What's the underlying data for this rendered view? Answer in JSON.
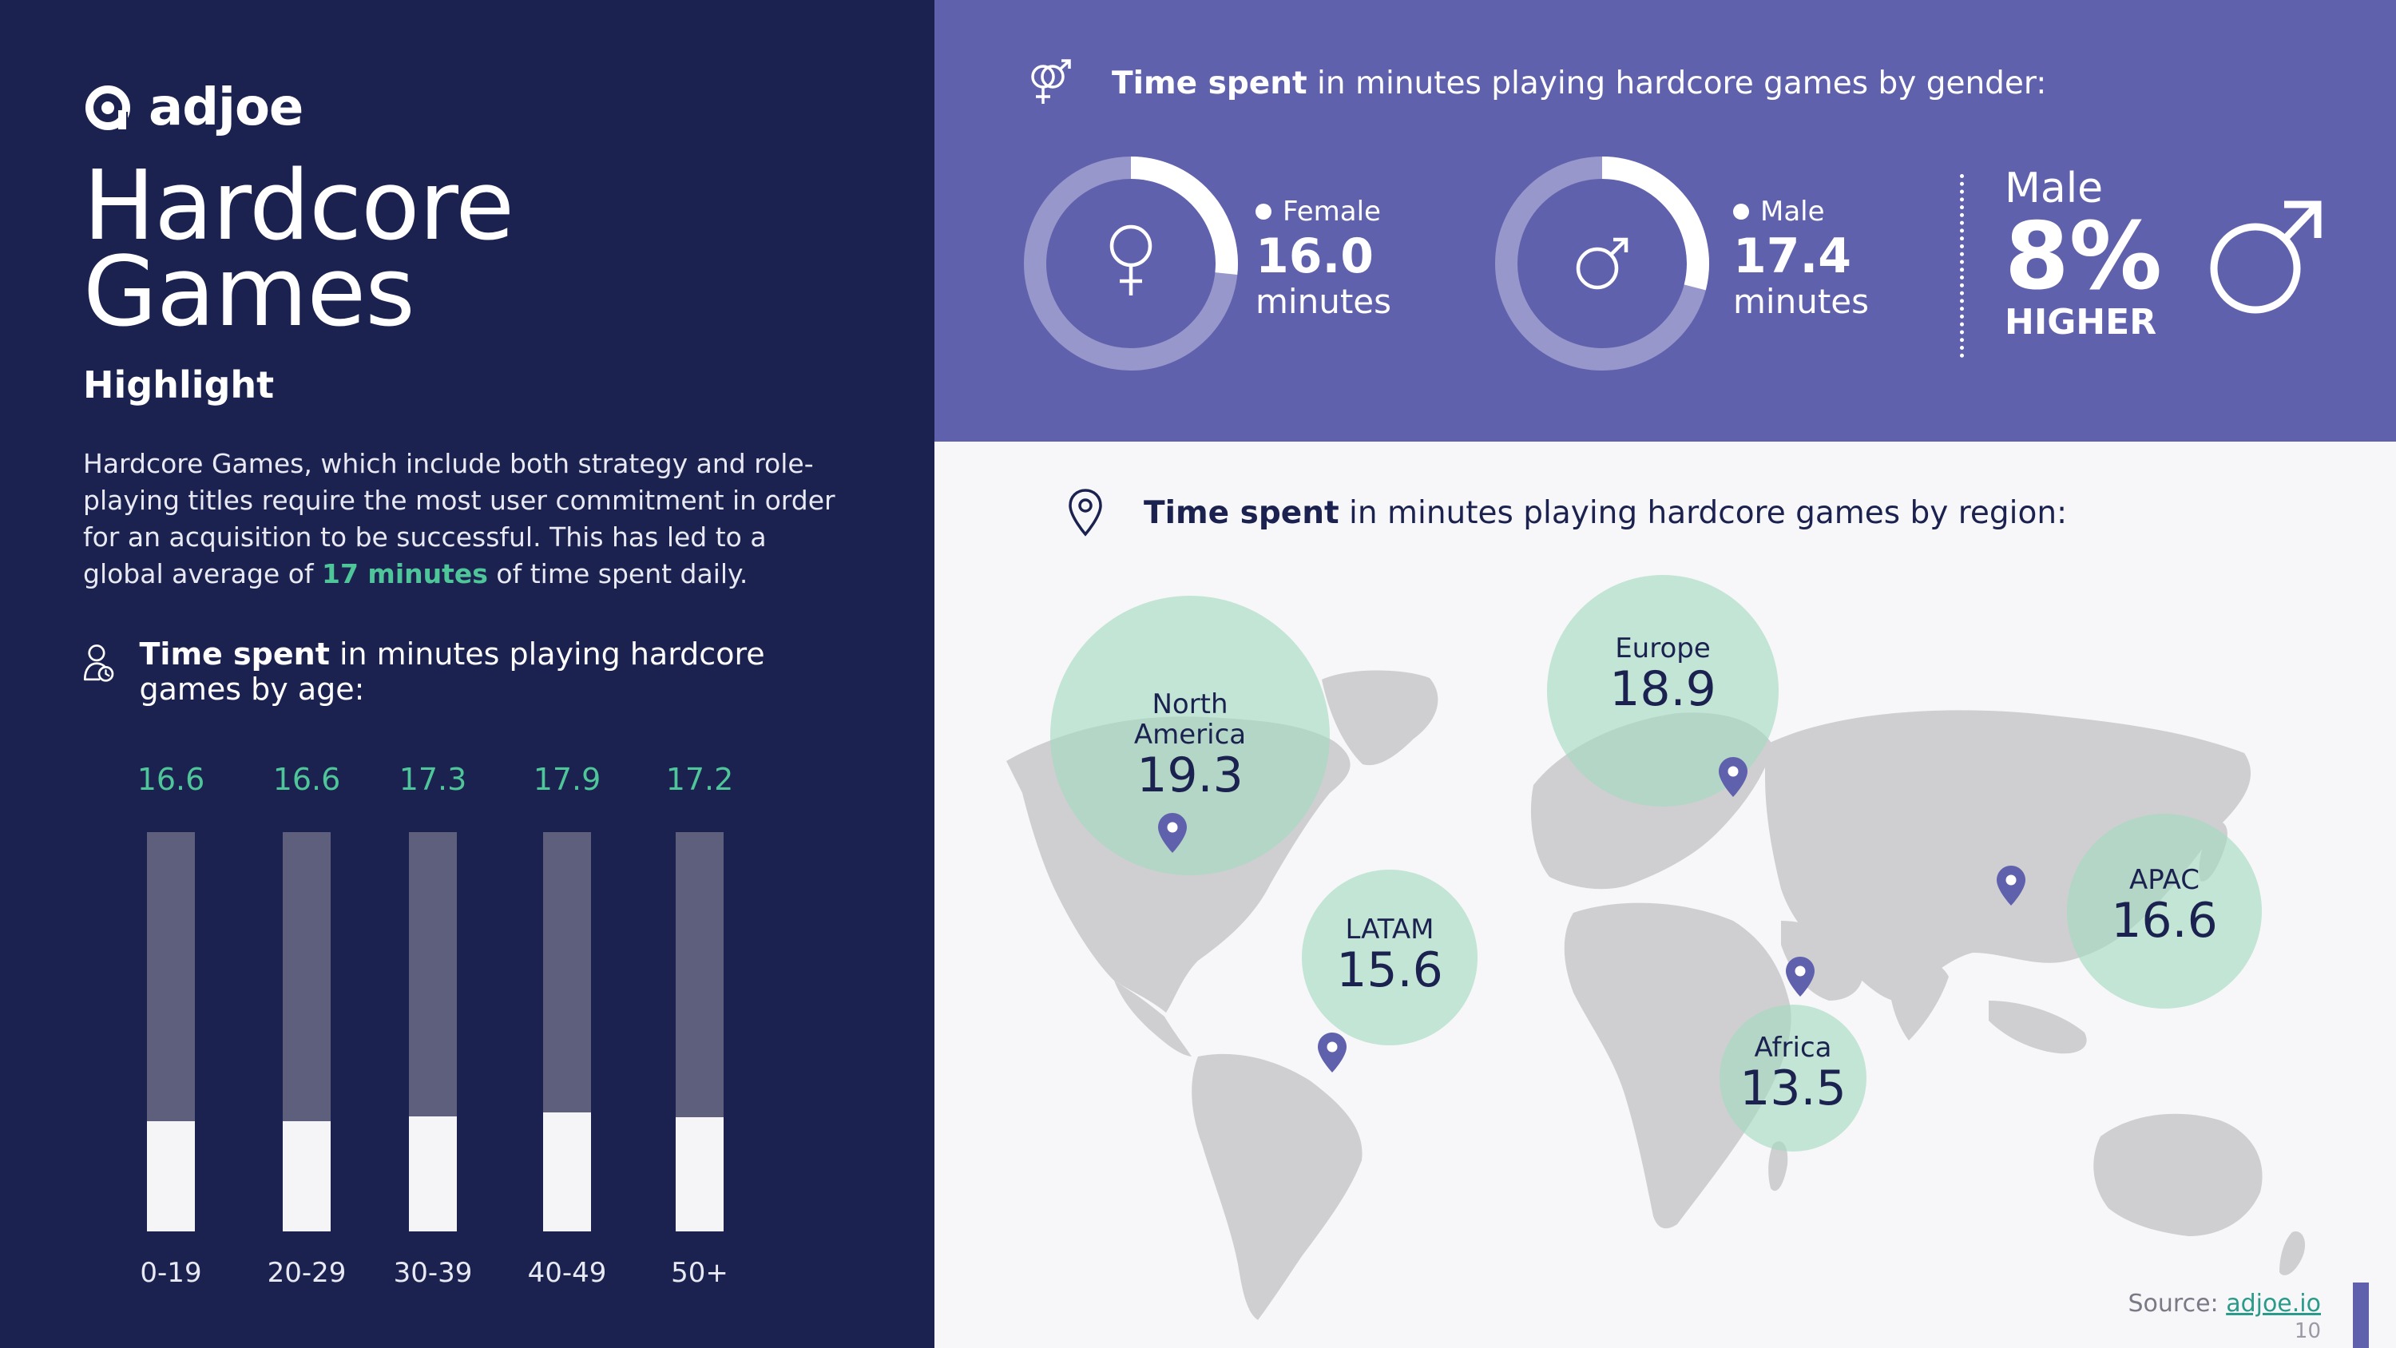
{
  "brand": {
    "name": "adjoe"
  },
  "title": {
    "line1": "Hardcore",
    "line2": "Games"
  },
  "subtitle": "Highlight",
  "description": {
    "before": "Hardcore Games, which include both strategy and role-playing titles require the most user commitment in order for an acquisition to be successful. This has led to a global average of ",
    "highlight": "17 minutes",
    "after": " of time spent daily."
  },
  "age_section": {
    "bold": "Time spent",
    "rest": " in minutes playing hardcore games by age:"
  },
  "gender_section": {
    "bold": "Time spent",
    "rest": " in minutes playing hardcore games by gender:",
    "female": {
      "label": "Female",
      "value": "16.0",
      "unit": "minutes"
    },
    "male": {
      "label": "Male",
      "value": "17.4",
      "unit": "minutes"
    },
    "difference": {
      "top": "Male",
      "pct": "8%",
      "bottom": "HIGHER"
    }
  },
  "region_section": {
    "bold": "Time spent",
    "rest": " in minutes playing hardcore games by region:",
    "regions": [
      {
        "name": "North America",
        "value": "19.3"
      },
      {
        "name": "Europe",
        "value": "18.9"
      },
      {
        "name": "LATAM",
        "value": "15.6"
      },
      {
        "name": "APAC",
        "value": "16.6"
      },
      {
        "name": "Africa",
        "value": "13.5"
      }
    ]
  },
  "footer": {
    "source_label": "Source: ",
    "source_link": "adjoe.io",
    "page_number": "10"
  },
  "colors": {
    "navy": "#1b2250",
    "purple": "#6061ad",
    "green": "#4fc59a",
    "bubble": "#a2dabf",
    "pin": "#6061ad"
  },
  "chart_data": [
    {
      "type": "bar",
      "categories": [
        "0-19",
        "20-29",
        "30-39",
        "40-49",
        "50+"
      ],
      "values": [
        16.6,
        16.6,
        17.3,
        17.9,
        17.2
      ],
      "value_labels": [
        "16.6",
        "16.6",
        "17.3",
        "17.9",
        "17.2"
      ],
      "title": "",
      "xlabel": "",
      "ylabel": "",
      "ylim": [
        0,
        60
      ]
    },
    {
      "type": "pie",
      "style": "donut",
      "series": [
        {
          "name": "Female",
          "value": 16.0,
          "max": 60
        },
        {
          "name": "Male",
          "value": 17.4,
          "max": 60
        }
      ]
    },
    {
      "type": "scatter",
      "style": "bubble-map",
      "categories": [
        "North America",
        "Europe",
        "LATAM",
        "APAC",
        "Africa"
      ],
      "values": [
        19.3,
        18.9,
        15.6,
        16.6,
        13.5
      ]
    }
  ]
}
